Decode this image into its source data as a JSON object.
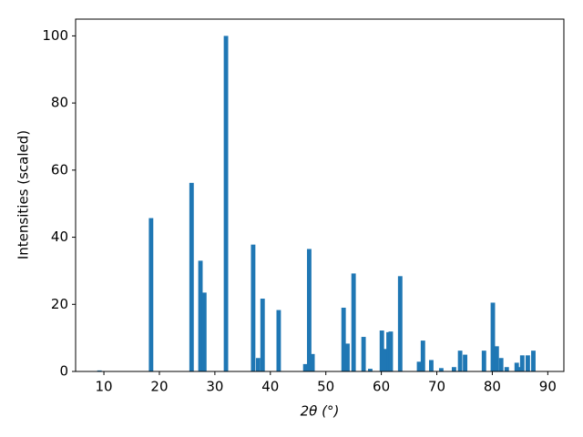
{
  "chart_data": {
    "type": "bar",
    "xlabel": "2θ (°)",
    "ylabel": "Intensities (scaled)",
    "color": "#1f77b4",
    "x": [
      9.2,
      18.5,
      25.8,
      27.4,
      28.1,
      32.0,
      36.9,
      37.8,
      38.6,
      41.5,
      46.3,
      47.0,
      47.6,
      53.2,
      53.9,
      55.0,
      56.8,
      58.0,
      60.1,
      60.8,
      61.3,
      61.7,
      63.4,
      66.8,
      67.5,
      69.0,
      70.8,
      73.1,
      74.2,
      75.1,
      78.5,
      80.1,
      80.8,
      81.6,
      82.6,
      84.4,
      84.8,
      85.4,
      86.4,
      87.4
    ],
    "values": [
      0.3,
      45.7,
      56.2,
      33,
      23.5,
      100,
      37.8,
      4,
      21.7,
      18.3,
      2.2,
      36.5,
      5.2,
      19,
      8.3,
      29.2,
      10.3,
      0.8,
      12.2,
      6.7,
      11.7,
      11.9,
      28.4,
      2.9,
      9.2,
      3.4,
      1,
      1.3,
      6.2,
      5,
      6.2,
      20.5,
      7.5,
      4,
      1.3,
      2.6,
      1.3,
      4.8,
      4.8,
      6.2
    ],
    "xlim": [
      4.9,
      92.9
    ],
    "ylim": [
      0,
      105
    ],
    "xticks": [
      10,
      20,
      30,
      40,
      50,
      60,
      70,
      80,
      90
    ],
    "yticks": [
      0,
      20,
      40,
      60,
      80,
      100
    ]
  }
}
